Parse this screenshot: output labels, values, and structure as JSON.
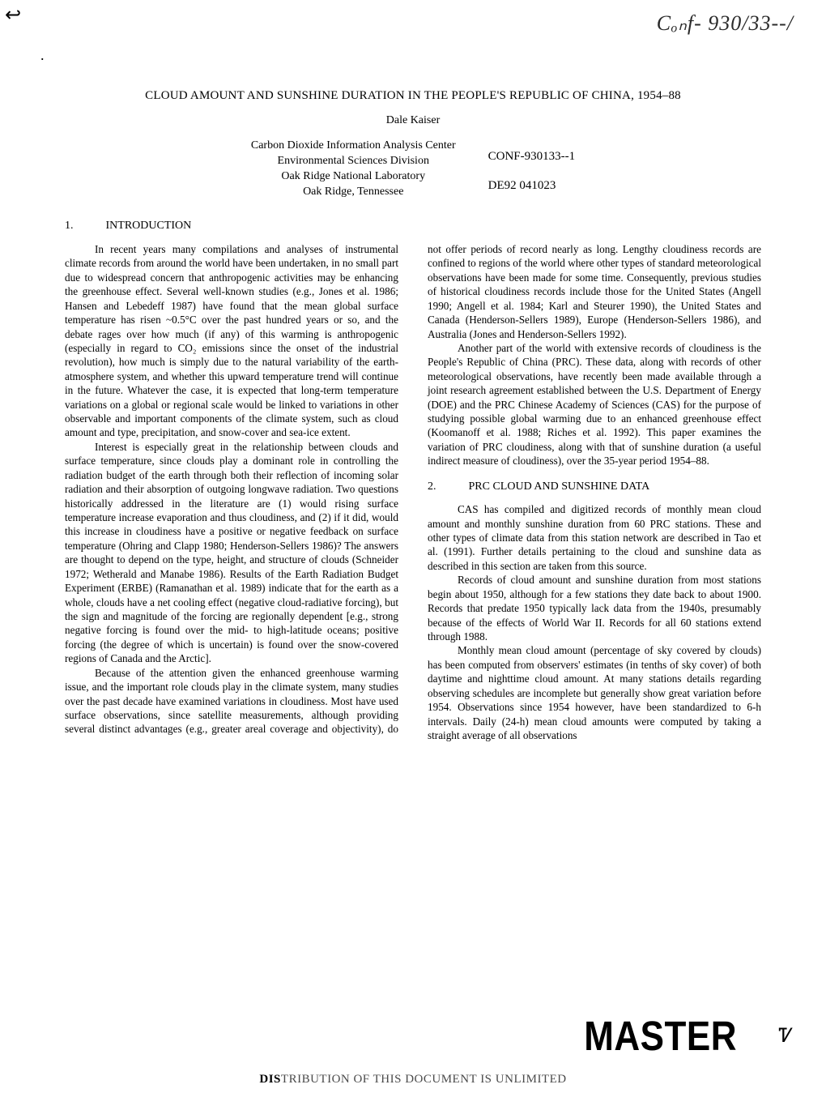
{
  "handwritten_top": "Cₒₙf- 930/33--/",
  "tick_mark": "↩",
  "title": "CLOUD AMOUNT AND SUNSHINE DURATION IN THE PEOPLE'S REPUBLIC OF CHINA, 1954–88",
  "author": "Dale Kaiser",
  "affiliation": {
    "line1": "Carbon Dioxide Information Analysis Center",
    "line2": "Environmental Sciences Division",
    "line3": "Oak Ridge National Laboratory",
    "line4": "Oak Ridge, Tennessee"
  },
  "report_codes": {
    "conf": "CONF-930133--1",
    "de": "DE92 041023"
  },
  "section1": {
    "num": "1.",
    "title": "INTRODUCTION"
  },
  "para1": "In recent years many compilations and analyses of instrumental climate records from around the world have been undertaken, in no small part due to widespread concern that anthropogenic activities may be enhancing the greenhouse effect. Several well-known studies (e.g., Jones et al. 1986; Hansen and Lebedeff 1987) have found that the mean global surface temperature has risen ~0.5°C over the past hundred years or so, and the debate rages over how much (if any) of this warming is anthropogenic (especially in regard to CO₂ emissions since the onset of the industrial revolution), how much is simply due to the natural variability of the earth-atmosphere system, and whether this upward temperature trend will continue in the future. Whatever the case, it is expected that long-term temperature variations on a global or regional scale would be linked to variations in other observable and important components of the climate system, such as cloud amount and type, precipitation, and snow-cover and sea-ice extent.",
  "para2": "Interest is especially great in the relationship between clouds and surface temperature, since clouds play a dominant role in controlling the radiation budget of the earth through both their reflection of incoming solar radiation and their absorption of outgoing longwave radiation. Two questions historically addressed in the literature are (1) would rising surface temperature increase evaporation and thus cloudiness, and (2) if it did, would this increase in cloudiness have a positive or negative feedback on surface temperature (Ohring and Clapp 1980; Henderson-Sellers 1986)? The answers are thought to depend on the type, height, and structure of clouds (Schneider 1972; Wetherald and Manabe 1986). Results of the Earth Radiation Budget Experiment (ERBE) (Ramanathan et al. 1989) indicate that for the earth as a whole, clouds have a net cooling effect (negative cloud-radiative forcing), but the sign and magnitude of the forcing are regionally dependent [e.g., strong negative forcing is found over the mid- to high-latitude oceans; positive forcing (the degree of which is uncertain) is found over the snow-covered regions of Canada and the Arctic].",
  "para3": "Because of the attention given the enhanced greenhouse warming issue, and the important role clouds play in the climate system, many studies over the past decade have examined variations in cloudiness. Most have used surface observations, since satellite measurements, although providing several distinct advantages (e.g., greater areal coverage and objectivity), do not offer periods of record nearly as long. Lengthy cloudiness records are confined to regions of the world where other types of standard meteorological observations have been made for some time. Consequently, previous studies of historical cloudiness records include those for the United States (Angell 1990; Angell et al. 1984; Karl and Steurer 1990), the United States and Canada (Henderson-Sellers 1989), Europe (Henderson-Sellers 1986), and Australia (Jones and Henderson-Sellers 1992).",
  "para4": "Another part of the world with extensive records of cloudiness is the People's Republic of China (PRC). These data, along with records of other meteorological observations, have recently been made available through a joint research agreement established between the U.S. Department of Energy (DOE) and the PRC Chinese Academy of Sciences (CAS) for the purpose of studying possible global warming due to an enhanced greenhouse effect (Koomanoff et al. 1988; Riches et al. 1992). This paper examines the variation of PRC cloudiness, along with that of sunshine duration (a useful indirect measure of cloudiness), over the 35-year period 1954–88.",
  "section2": {
    "num": "2.",
    "title": "PRC CLOUD AND SUNSHINE DATA"
  },
  "para5": "CAS has compiled and digitized records of monthly mean cloud amount and monthly sunshine duration from 60 PRC stations. These and other types of climate data from this station network are described in Tao et al. (1991). Further details pertaining to the cloud and sunshine data as described in this section are taken from this source.",
  "para6": "Records of cloud amount and sunshine duration from most stations begin about 1950, although for a few stations they date back to about 1900. Records that predate 1950 typically lack data from the 1940s, presumably because of the effects of World War II. Records for all 60 stations extend through 1988.",
  "para7": "Monthly mean cloud amount (percentage of sky covered by clouds) has been computed from observers' estimates (in tenths of sky cover) of both daytime and nighttime cloud amount. At many stations details regarding observing schedules are incomplete but generally show great variation before 1954. Observations since 1954 however, have been standardized to 6-h intervals. Daily (24-h) mean cloud amounts were computed by taking a straight average of all observations",
  "master": "MASTER",
  "swirl": "Ꮴ",
  "distribution_bold": "DIS",
  "distribution_rest": "TRIBUTION OF THIS DOCUMENT IS UNLIMITED"
}
